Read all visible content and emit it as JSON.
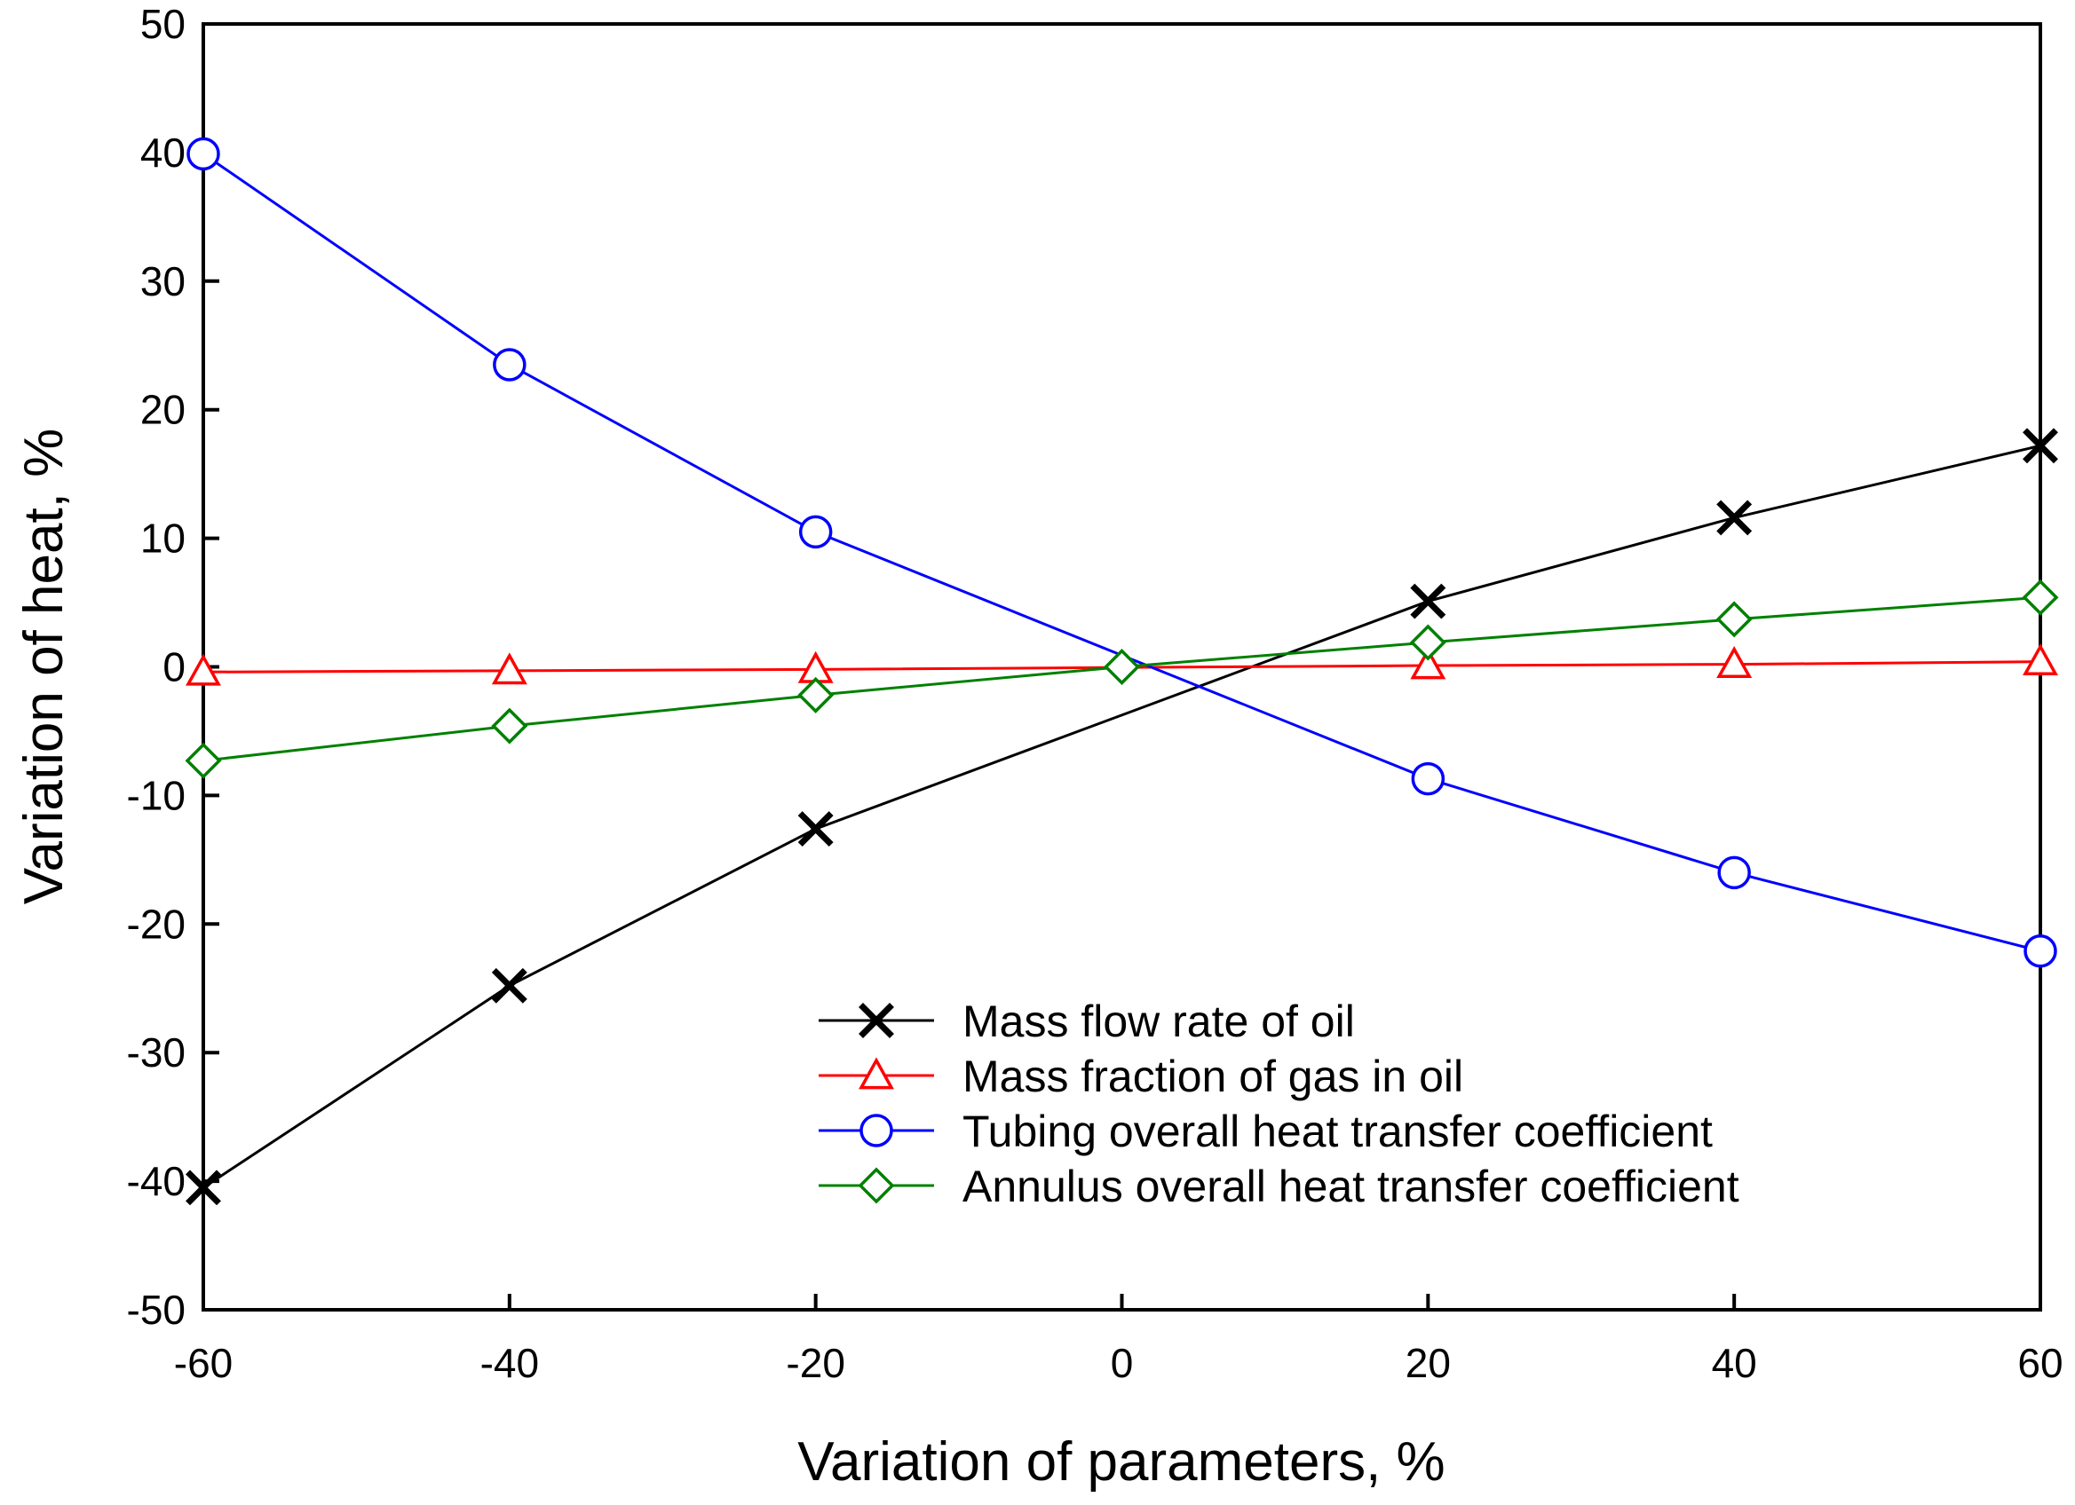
{
  "chart_data": {
    "type": "line",
    "title": "",
    "xlabel": "Variation of parameters, %",
    "ylabel": "Variation of heat, %",
    "xlim": [
      -60,
      60
    ],
    "ylim": [
      -50,
      50
    ],
    "xticks": [
      -60,
      -40,
      -20,
      0,
      20,
      40,
      60
    ],
    "yticks": [
      -50,
      -40,
      -30,
      -20,
      -10,
      0,
      10,
      20,
      30,
      40,
      50
    ],
    "grid": false,
    "legend_position": "lower-right",
    "series": [
      {
        "name": "Mass flow rate of oil",
        "color": "#000000",
        "marker": "x",
        "x": [
          -60,
          -40,
          -20,
          20,
          40,
          60
        ],
        "y": [
          -40.5,
          -24.8,
          -12.6,
          5.1,
          11.6,
          17.2
        ]
      },
      {
        "name": "Mass fraction of gas in oil",
        "color": "#ff0000",
        "marker": "triangle",
        "x": [
          -60,
          -40,
          -20,
          20,
          40,
          60
        ],
        "y": [
          -0.4,
          -0.3,
          -0.2,
          0.1,
          0.2,
          0.4
        ]
      },
      {
        "name": "Tubing overall heat transfer coefficient",
        "color": "#0000ff",
        "marker": "circle",
        "x": [
          -60,
          -40,
          -20,
          20,
          40,
          60
        ],
        "y": [
          39.9,
          23.5,
          10.5,
          -8.7,
          -16.0,
          -22.1
        ]
      },
      {
        "name": "Annulus overall heat transfer coefficient",
        "color": "#008000",
        "marker": "diamond",
        "x": [
          -60,
          -40,
          -20,
          0,
          20,
          40,
          60
        ],
        "y": [
          -7.3,
          -4.6,
          -2.2,
          0,
          1.9,
          3.7,
          5.4
        ]
      }
    ]
  }
}
